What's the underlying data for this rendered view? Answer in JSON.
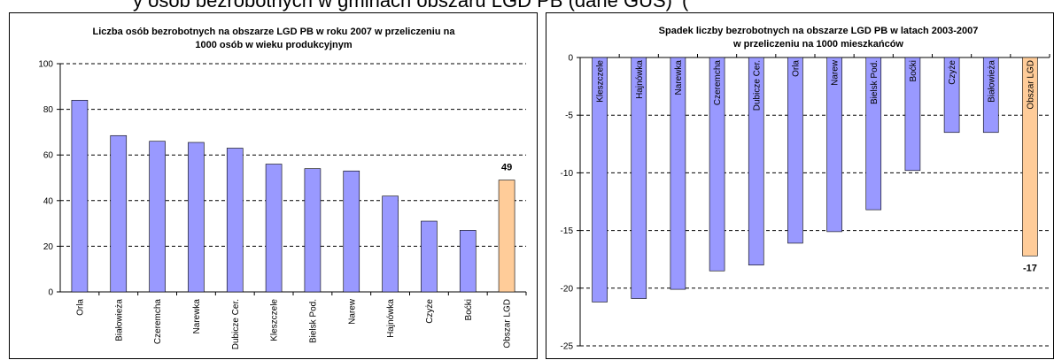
{
  "header": {
    "partial_left": "y osób bezrobotnych w gminach obszaru LGD PB (dane GUS)",
    "partial_right": "("
  },
  "colors": {
    "bar": "#9999ff",
    "highlight": "#ffcc99",
    "bar_edge": "#000000"
  },
  "chart_data": [
    {
      "type": "bar",
      "title_lines": [
        "Liczba osób bezrobotnych na obszarze LGD PB w roku 2007 w przeliczeniu na",
        "1000 osób w wieku produkcyjnym"
      ],
      "categories": [
        "Orla",
        "Białowieża",
        "Czeremcha",
        "Narewka",
        "Dubicze Cer.",
        "Kleszczele",
        "Bielsk Pod.",
        "Narew",
        "Hajnówka",
        "Czyże",
        "Boćki",
        "Obszar LGD"
      ],
      "values": [
        84,
        68.5,
        66,
        65.5,
        63,
        56,
        54,
        53,
        42,
        31,
        27,
        49
      ],
      "highlight_index": 11,
      "data_labels": [
        {
          "index": 11,
          "text": "49"
        }
      ],
      "ylim": [
        0,
        100
      ],
      "yticks": [
        "0",
        "20",
        "40",
        "60",
        "80",
        "100"
      ],
      "grid": "dashed horizontal",
      "legend": "none"
    },
    {
      "type": "bar",
      "title_lines": [
        "Spadek liczby bezrobotnych na obszarze LGD PB w latach 2003-2007",
        "w przeliczeniu na 1000 mieszkańców"
      ],
      "categories": [
        "Kleszczele",
        "Hajnówka",
        "Narewka",
        "Czeremcha",
        "Dubicze Cer.",
        "Orla",
        "Narew",
        "Bielsk Pod.",
        "Boćki",
        "Czyże",
        "Białowieża",
        "Obszar LGD"
      ],
      "values": [
        -21.2,
        -20.9,
        -20.1,
        -18.5,
        -18,
        -16.1,
        -15.1,
        -13.2,
        -9.8,
        -6.5,
        -6.5,
        -17.2
      ],
      "highlight_index": 11,
      "data_labels": [
        {
          "index": 11,
          "text": "-17"
        }
      ],
      "ylim": [
        -25,
        0
      ],
      "yticks": [
        "0",
        "-5",
        "-10",
        "-15",
        "-20",
        "-25"
      ],
      "grid": "dashed horizontal",
      "legend": "none"
    }
  ]
}
